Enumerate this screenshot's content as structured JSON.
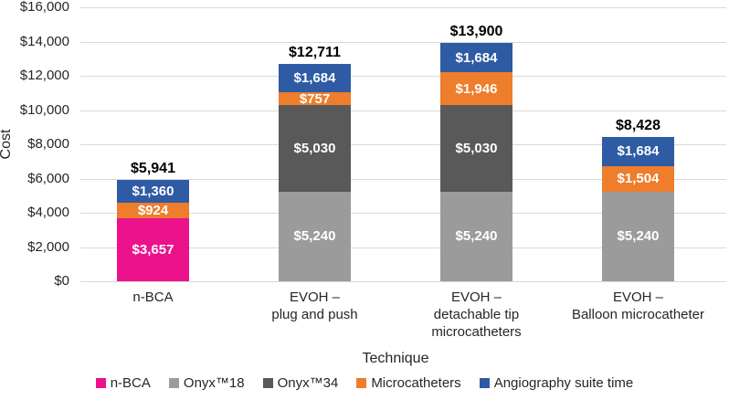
{
  "chart_data": {
    "type": "bar",
    "stacked": true,
    "title": "",
    "xlabel": "Technique",
    "ylabel": "Cost",
    "ylim": [
      0,
      16000
    ],
    "ytick_values": [
      0,
      2000,
      4000,
      6000,
      8000,
      10000,
      12000,
      14000,
      16000
    ],
    "ytick_labels": [
      "$0",
      "$2,000",
      "$4,000",
      "$6,000",
      "$8,000",
      "$10,000",
      "$12,000",
      "$14,000",
      "$16,000"
    ],
    "categories": [
      "n-BCA",
      "EVOH –\nplug and push",
      "EVOH –\ndetachable tip\nmicrocatheters",
      "EVOH –\nBalloon microcatheter"
    ],
    "series": [
      {
        "name": "n-BCA",
        "color": "#EC128C",
        "values": [
          3657,
          0,
          0,
          0
        ]
      },
      {
        "name": "Onyx™18",
        "color": "#9B9B9B",
        "values": [
          0,
          5240,
          5240,
          5240
        ]
      },
      {
        "name": "Onyx™34",
        "color": "#595959",
        "values": [
          0,
          5030,
          5030,
          0
        ]
      },
      {
        "name": "Microcatheters",
        "color": "#EE7D2C",
        "values": [
          924,
          757,
          1946,
          1504
        ]
      },
      {
        "name": "Angiography suite time",
        "color": "#2E5BA3",
        "values": [
          1360,
          1684,
          1684,
          1684
        ]
      }
    ],
    "totals": [
      5941,
      12711,
      13900,
      8428
    ],
    "total_labels": [
      "$5,941",
      "$12,711",
      "$13,900",
      "$8,428"
    ],
    "segment_labels": [
      [
        "$3,657",
        "",
        "",
        "$924",
        "$1,360"
      ],
      [
        "",
        "$5,240",
        "$5,030",
        "$757",
        "$1,684"
      ],
      [
        "",
        "$5,240",
        "$5,030",
        "$1,946",
        "$1,684"
      ],
      [
        "",
        "$5,240",
        "",
        "$1,504",
        "$1,684"
      ]
    ],
    "gridline_color": "#D9D9D9",
    "background": "#FFFFFF",
    "grid": true,
    "legend_position": "bottom"
  }
}
